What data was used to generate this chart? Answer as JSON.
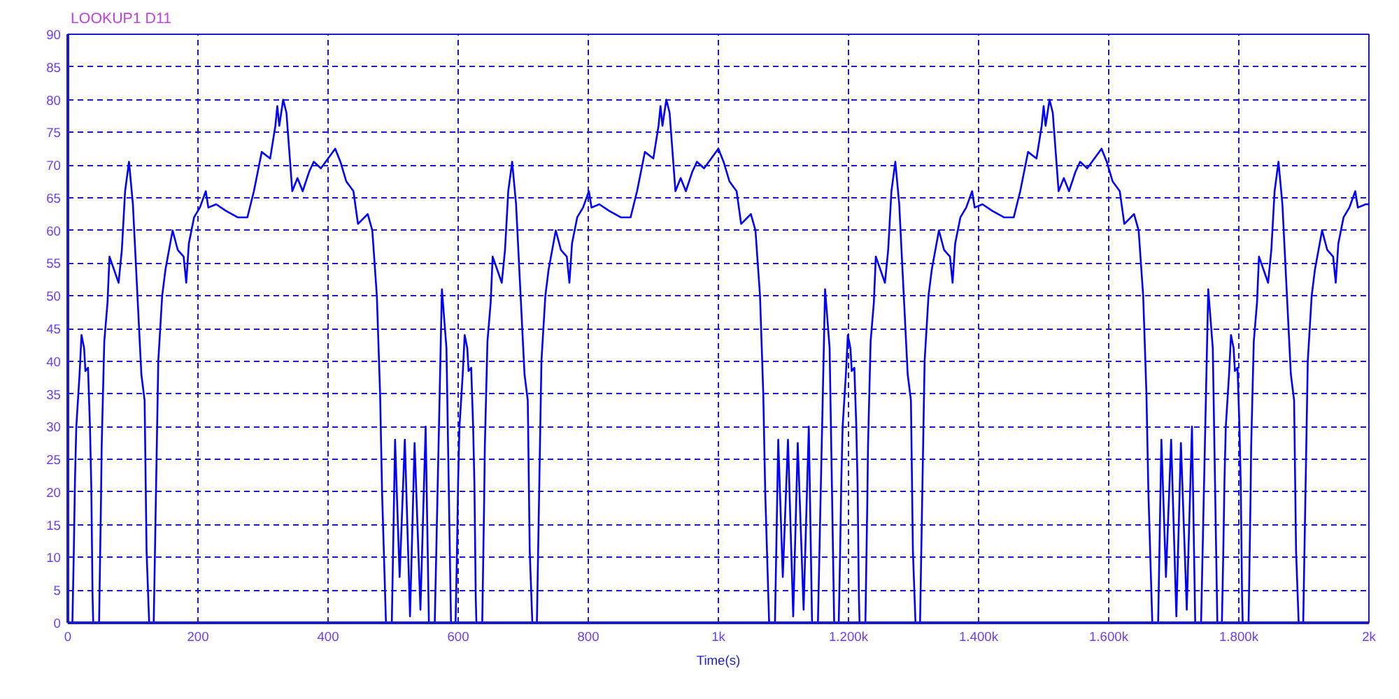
{
  "chart_data": {
    "type": "line",
    "title": "LOOKUP1 D11",
    "xlabel": "Time(s)",
    "xlim": [
      0,
      2000
    ],
    "ylim": [
      0,
      90
    ],
    "xticks": [
      0,
      200,
      400,
      600,
      800,
      {
        "value": 1000,
        "label": "1k"
      },
      {
        "value": 1200,
        "label": "1.200k"
      },
      {
        "value": 1400,
        "label": "1.400k"
      },
      {
        "value": 1600,
        "label": "1.600k"
      },
      {
        "value": 1800,
        "label": "1.800k"
      },
      {
        "value": 2000,
        "label": "2k"
      }
    ],
    "yticks": [
      0,
      5,
      10,
      15,
      20,
      25,
      30,
      35,
      40,
      45,
      50,
      55,
      60,
      65,
      70,
      75,
      80,
      85,
      90
    ],
    "grid": true,
    "line_style": "solid",
    "x": [
      0,
      7,
      9,
      11,
      13,
      18,
      21,
      25,
      27,
      31,
      34,
      36,
      38,
      39,
      48,
      51,
      52,
      56,
      61,
      64,
      71,
      78,
      83,
      88,
      94,
      100,
      107,
      113,
      118,
      121,
      125,
      132,
      139,
      145,
      150,
      161,
      169,
      178,
      182,
      186,
      194,
      203,
      212,
      216,
      228,
      243,
      261,
      276,
      286,
      298,
      311,
      319,
      322,
      325,
      331,
      336,
      345,
      353,
      361,
      371,
      378,
      389,
      400,
      411,
      419,
      428,
      439,
      446,
      461,
      468,
      475,
      480,
      483,
      489,
      498,
      503,
      510,
      518,
      526,
      533,
      542,
      550,
      555,
      564,
      575,
      582,
      589,
      596,
      598,
      600,
      602,
      607,
      610,
      614,
      616,
      620,
      623,
      625,
      627,
      628,
      637,
      640,
      641,
      645,
      650,
      653,
      660,
      667,
      672,
      677,
      683,
      689,
      696,
      702,
      707,
      710,
      714,
      721,
      728,
      734,
      739,
      750,
      758,
      767,
      771,
      775,
      783,
      792,
      801,
      805,
      817,
      832,
      850,
      865,
      875,
      887,
      900,
      908,
      911,
      914,
      920,
      925,
      934,
      942,
      950,
      960,
      967,
      978,
      989,
      1000,
      1008,
      1017,
      1028,
      1035,
      1050,
      1057,
      1064,
      1069,
      1072,
      1078,
      1087,
      1092,
      1099,
      1107,
      1115,
      1122,
      1131,
      1139,
      1144,
      1153,
      1164,
      1171,
      1178,
      1185,
      1187,
      1189,
      1191,
      1196,
      1199,
      1203,
      1205,
      1209,
      1212,
      1214,
      1216,
      1217,
      1226,
      1229,
      1230,
      1234,
      1239,
      1242,
      1249,
      1256,
      1261,
      1266,
      1272,
      1278,
      1285,
      1291,
      1296,
      1299,
      1303,
      1310,
      1317,
      1323,
      1328,
      1339,
      1347,
      1356,
      1360,
      1364,
      1372,
      1381,
      1390,
      1394,
      1406,
      1421,
      1439,
      1454,
      1464,
      1476,
      1489,
      1497,
      1500,
      1503,
      1509,
      1514,
      1523,
      1531,
      1539,
      1549,
      1556,
      1567,
      1578,
      1589,
      1597,
      1606,
      1617,
      1624,
      1639,
      1646,
      1653,
      1658,
      1661,
      1667,
      1676,
      1681,
      1688,
      1696,
      1704,
      1711,
      1720,
      1728,
      1733,
      1742,
      1753,
      1760,
      1767,
      1774,
      1776,
      1778,
      1780,
      1785,
      1788,
      1792,
      1794,
      1798,
      1801,
      1803,
      1805,
      1806,
      1815,
      1818,
      1819,
      1823,
      1828,
      1831,
      1838,
      1845,
      1850,
      1855,
      1861,
      1867,
      1874,
      1880,
      1885,
      1888,
      1892,
      1899,
      1906,
      1912,
      1917,
      1928,
      1936,
      1945,
      1949,
      1953,
      1961,
      1970,
      1979,
      1983,
      1995,
      2000
    ],
    "series": [
      {
        "color": "#0000ff",
        "values": [
          0,
          0,
          10,
          22,
          30,
          38,
          44,
          42,
          38.5,
          39,
          30,
          21,
          4,
          0,
          0,
          19,
          27,
          43,
          49,
          56,
          54,
          52,
          57,
          66,
          70.5,
          64,
          50,
          38,
          34,
          11,
          0,
          0,
          40,
          50,
          54,
          60,
          57,
          56,
          52,
          58,
          62,
          63.5,
          66,
          63.5,
          64,
          63,
          62,
          62,
          66,
          72,
          71,
          76,
          79,
          76,
          80,
          78,
          66,
          68,
          66,
          69,
          70.5,
          69.5,
          71,
          72.5,
          70.5,
          67.5,
          66,
          61,
          62.5,
          60,
          50,
          35,
          20,
          0,
          0,
          28,
          7,
          28,
          1,
          27.5,
          2,
          30,
          0,
          0,
          51,
          42,
          0,
          0,
          10,
          22,
          30,
          38,
          44,
          42,
          38.5,
          39,
          30,
          21,
          4,
          0,
          0,
          19,
          27,
          43,
          49,
          56,
          54,
          52,
          57,
          66,
          70.5,
          64,
          50,
          38,
          34,
          11,
          0,
          0,
          40,
          50,
          54,
          60,
          57,
          56,
          52,
          58,
          62,
          63.5,
          66,
          63.5,
          64,
          63,
          62,
          62,
          66,
          72,
          71,
          76,
          79,
          76,
          80,
          78,
          66,
          68,
          66,
          69,
          70.5,
          69.5,
          71,
          72.5,
          70.5,
          67.5,
          66,
          61,
          62.5,
          60,
          50,
          35,
          20,
          0,
          0,
          28,
          7,
          28,
          1,
          27.5,
          2,
          30,
          0,
          0,
          51,
          42,
          0,
          0,
          10,
          22,
          30,
          38,
          44,
          42,
          38.5,
          39,
          30,
          21,
          4,
          0,
          0,
          19,
          27,
          43,
          49,
          56,
          54,
          52,
          57,
          66,
          70.5,
          64,
          50,
          38,
          34,
          11,
          0,
          0,
          40,
          50,
          54,
          60,
          57,
          56,
          52,
          58,
          62,
          63.5,
          66,
          63.5,
          64,
          63,
          62,
          62,
          66,
          72,
          71,
          76,
          79,
          76,
          80,
          78,
          66,
          68,
          66,
          69,
          70.5,
          69.5,
          71,
          72.5,
          70.5,
          67.5,
          66,
          61,
          62.5,
          60,
          50,
          35,
          20,
          0,
          0,
          28,
          7,
          28,
          1,
          27.5,
          2,
          30,
          0,
          0,
          51,
          42,
          0,
          0,
          10,
          22,
          30,
          38,
          44,
          42,
          38.5,
          39,
          30,
          21,
          4,
          0,
          0,
          19,
          27,
          43,
          49,
          56,
          54,
          52,
          57,
          66,
          70.5,
          64,
          50,
          38,
          34,
          11,
          0,
          0,
          40,
          50,
          54,
          60,
          57,
          56,
          52,
          58,
          62,
          63.5,
          66,
          63.5,
          64,
          64
        ]
      }
    ]
  }
}
